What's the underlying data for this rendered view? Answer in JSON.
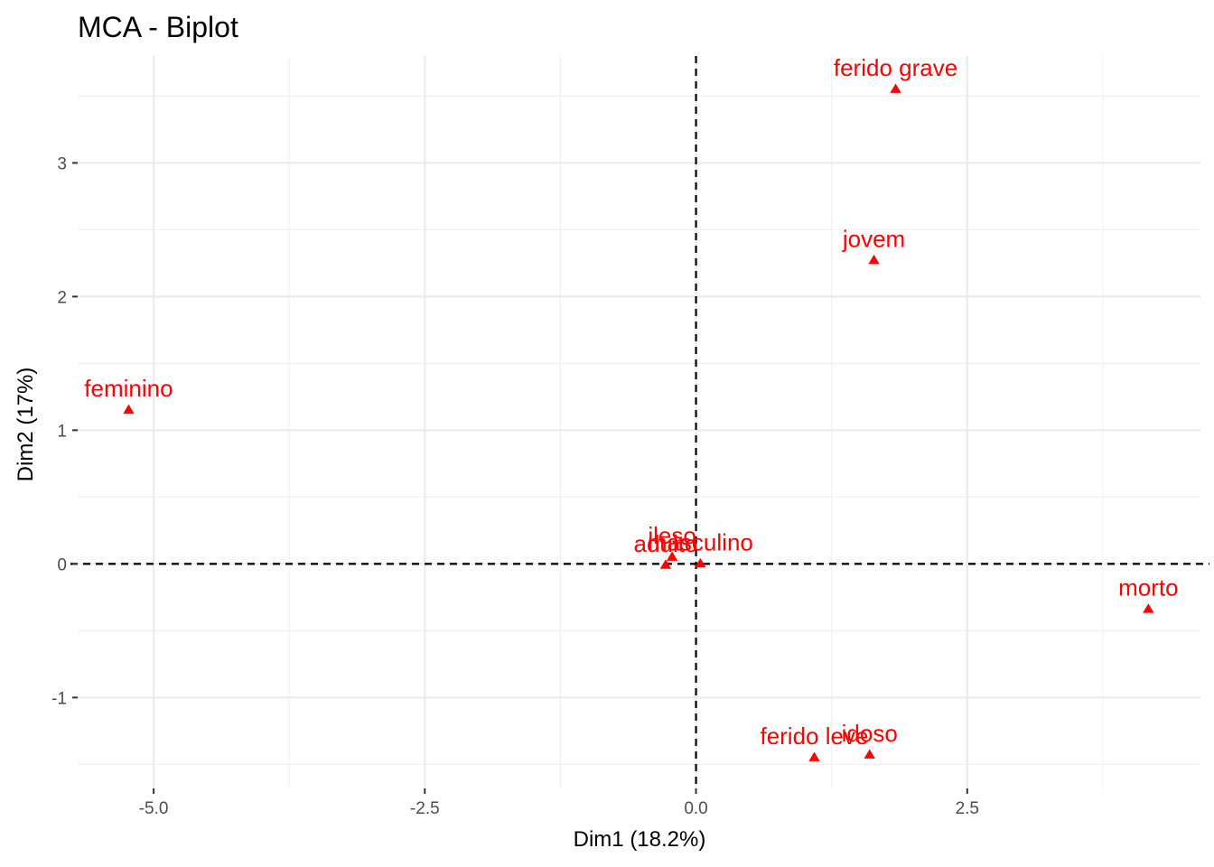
{
  "chart_data": {
    "type": "scatter",
    "title": "MCA - Biplot",
    "xlabel": "Dim1 (18.2%)",
    "ylabel": "Dim2 (17%)",
    "xlim": [
      -5.7,
      4.65
    ],
    "ylim": [
      -1.68,
      3.8
    ],
    "x_major_ticks": [
      -5.0,
      -2.5,
      0.0,
      2.5
    ],
    "x_tick_labels": [
      "-5.0",
      "-2.5",
      "0.0",
      "2.5"
    ],
    "x_minor_ticks": [
      -3.75,
      -1.25,
      1.25,
      3.75
    ],
    "y_major_ticks": [
      -1,
      0,
      1,
      2,
      3
    ],
    "y_tick_labels": [
      "-1",
      "0",
      "1",
      "2",
      "3"
    ],
    "y_minor_ticks": [
      -1.5,
      -0.5,
      0.5,
      1.5,
      2.5,
      3.5
    ],
    "grid": true,
    "reference_lines": {
      "x": 0,
      "y": 0,
      "style": "dashed"
    },
    "marker": "triangle",
    "point_color": "#ff0000",
    "points": [
      {
        "label": "feminino",
        "x": -5.23,
        "y": 1.15
      },
      {
        "label": "masculino",
        "x": 0.04,
        "y": 0.0
      },
      {
        "label": "adulto",
        "x": -0.28,
        "y": -0.01
      },
      {
        "label": "ileso",
        "x": -0.22,
        "y": 0.05
      },
      {
        "label": "jovem",
        "x": 1.64,
        "y": 2.27
      },
      {
        "label": "idoso",
        "x": 1.6,
        "y": -1.43
      },
      {
        "label": "ferido grave",
        "x": 1.84,
        "y": 3.55
      },
      {
        "label": "ferido leve",
        "x": 1.09,
        "y": -1.45
      },
      {
        "label": "morto",
        "x": 4.17,
        "y": -0.34
      }
    ]
  }
}
